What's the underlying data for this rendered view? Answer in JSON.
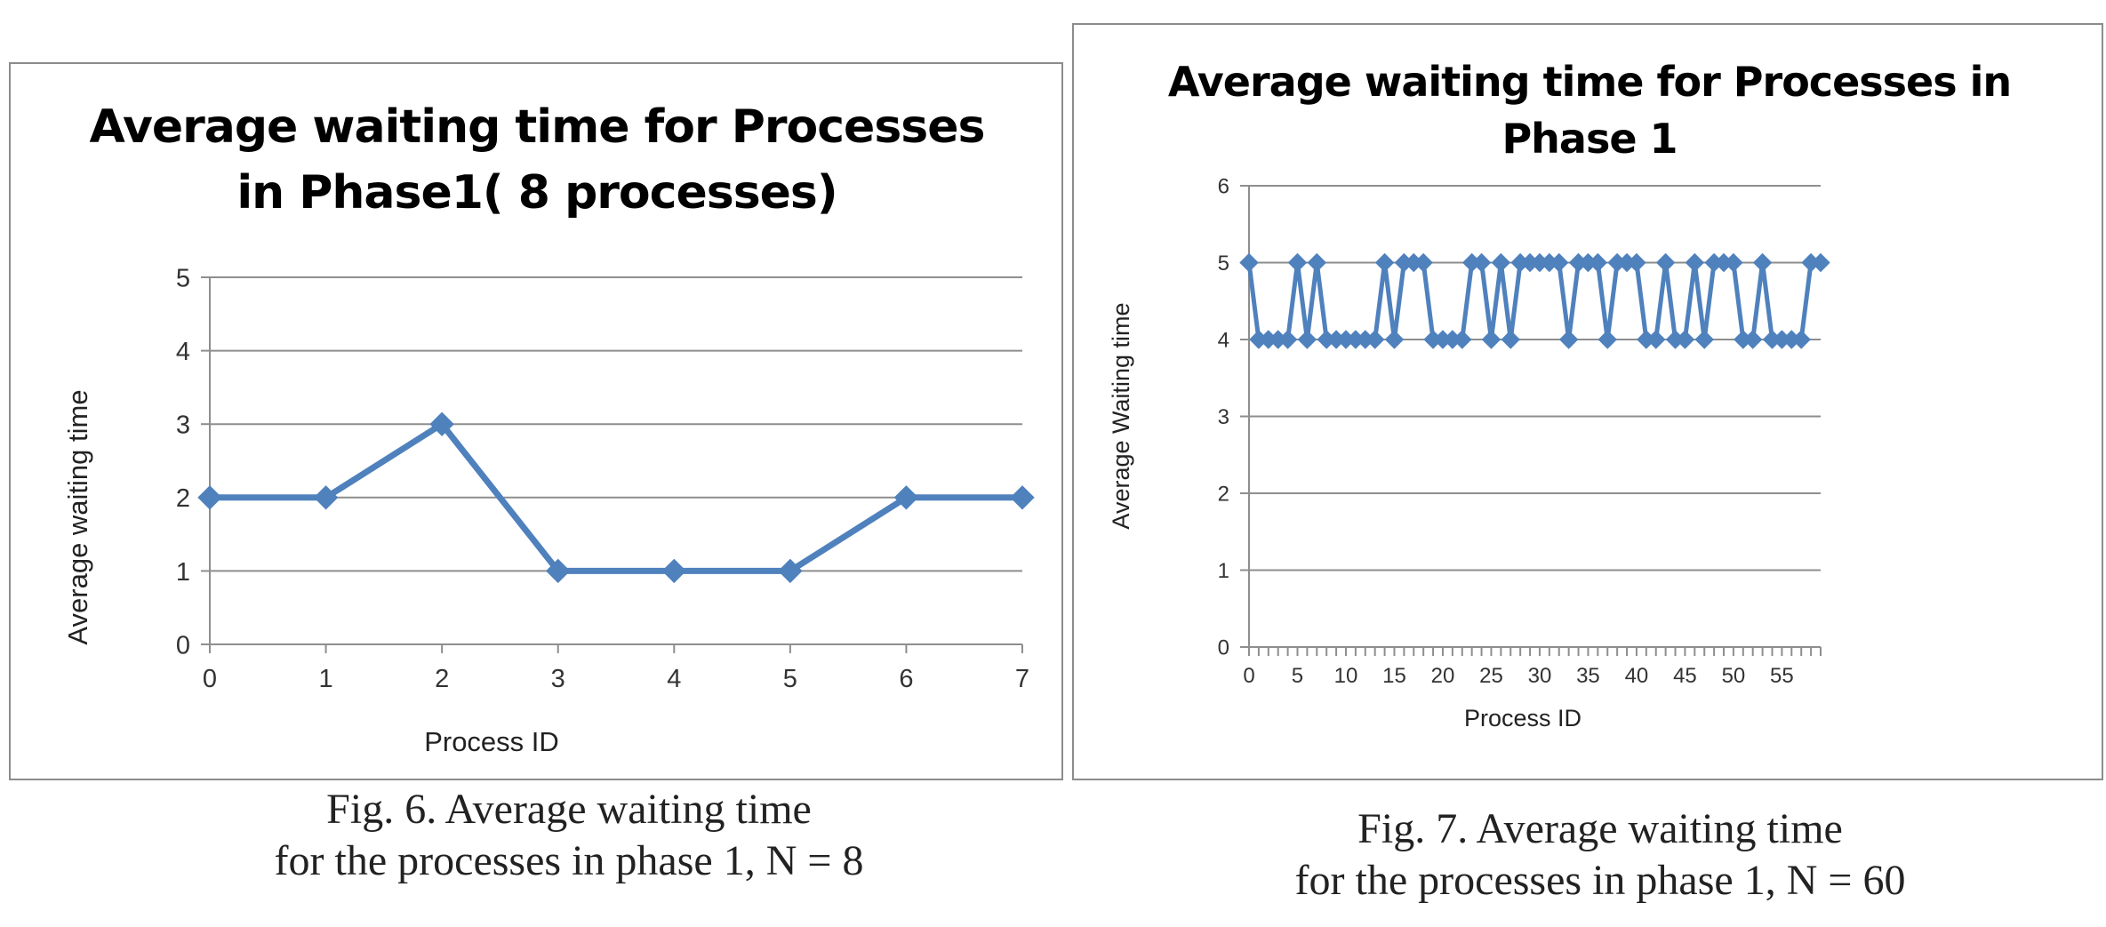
{
  "chart_data": [
    {
      "type": "line",
      "title_lines": [
        "Average waiting time for Processes",
        "in Phase1( 8 processes)"
      ],
      "xlabel": "Process ID",
      "ylabel": "Average waiting time",
      "xlim": [
        0,
        7
      ],
      "ylim": [
        0,
        5
      ],
      "x_ticks": [
        "0",
        "1",
        "2",
        "3",
        "4",
        "5",
        "6",
        "7"
      ],
      "y_ticks": [
        "0",
        "1",
        "2",
        "3",
        "4",
        "5"
      ],
      "grid": true,
      "legend": "none",
      "color": "#4f81bd",
      "series": [
        {
          "x": [
            0,
            1,
            2,
            3,
            4,
            5,
            6,
            7
          ],
          "values": [
            2,
            2,
            3,
            1,
            1,
            1,
            2,
            2
          ]
        }
      ]
    },
    {
      "type": "line",
      "title_lines": [
        "Average waiting time for Processes  in",
        "Phase 1"
      ],
      "xlabel": "Process ID",
      "ylabel": "Average Waiting time",
      "xlim": [
        0,
        59
      ],
      "ylim": [
        0,
        6
      ],
      "x_ticks": [
        "0",
        "5",
        "10",
        "15",
        "20",
        "25",
        "30",
        "35",
        "40",
        "45",
        "50",
        "55"
      ],
      "y_ticks": [
        "0",
        "1",
        "2",
        "3",
        "4",
        "5",
        "6"
      ],
      "grid": true,
      "legend": "none",
      "color": "#4f81bd",
      "series": [
        {
          "x": [
            0,
            1,
            2,
            3,
            4,
            5,
            6,
            7,
            8,
            9,
            10,
            11,
            12,
            13,
            14,
            15,
            16,
            17,
            18,
            19,
            20,
            21,
            22,
            23,
            24,
            25,
            26,
            27,
            28,
            29,
            30,
            31,
            32,
            33,
            34,
            35,
            36,
            37,
            38,
            39,
            40,
            41,
            42,
            43,
            44,
            45,
            46,
            47,
            48,
            49,
            50,
            51,
            52,
            53,
            54,
            55,
            56,
            57,
            58,
            59
          ],
          "values": [
            5,
            4,
            4,
            4,
            4,
            5,
            4,
            5,
            4,
            4,
            4,
            4,
            4,
            4,
            5,
            4,
            5,
            5,
            5,
            4,
            4,
            4,
            4,
            5,
            5,
            4,
            5,
            4,
            5,
            5,
            5,
            5,
            5,
            4,
            5,
            5,
            5,
            4,
            5,
            5,
            5,
            4,
            4,
            5,
            4,
            4,
            5,
            4,
            5,
            5,
            5,
            4,
            4,
            5,
            4,
            4,
            4,
            4,
            5,
            5
          ]
        }
      ]
    }
  ],
  "captions": {
    "fig6_line1": "Fig. 6.  Average waiting time",
    "fig6_line2": "for the processes in phase 1, N = 8",
    "fig7_line1": "Fig. 7.  Average waiting time",
    "fig7_line2": "for the processes in phase 1, N = 60"
  }
}
